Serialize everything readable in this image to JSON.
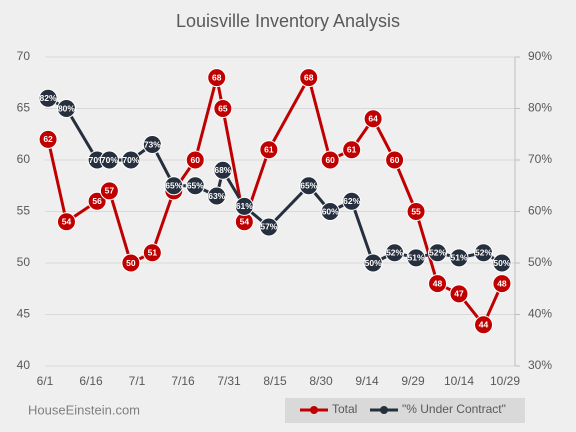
{
  "chart_data": {
    "type": "line",
    "title": "Louisville Inventory Analysis",
    "source": "HouseEinstein.com",
    "x": [
      "6/2",
      "6/8",
      "6/18",
      "6/22",
      "6/29",
      "7/6",
      "7/13",
      "7/20",
      "7/27",
      "7/29",
      "8/5",
      "8/13",
      "8/26",
      "9/2",
      "9/9",
      "9/16",
      "9/23",
      "9/30",
      "10/7",
      "10/14",
      "10/22",
      "10/28"
    ],
    "xlim": [
      "6/1",
      "10/29"
    ],
    "xticks": [
      "6/1",
      "6/16",
      "7/1",
      "7/16",
      "7/31",
      "8/15",
      "8/30",
      "9/14",
      "9/29",
      "10/14",
      "10/29"
    ],
    "ylim": [
      40,
      70
    ],
    "yticks": [
      40,
      45,
      50,
      55,
      60,
      65,
      70
    ],
    "y2lim": [
      30,
      90
    ],
    "y2ticks": [
      {
        "value": 30,
        "label": "30%"
      },
      {
        "value": 40,
        "label": "40%"
      },
      {
        "value": 50,
        "label": "50%"
      },
      {
        "value": 60,
        "label": "60%"
      },
      {
        "value": 70,
        "label": "70%"
      },
      {
        "value": 80,
        "label": "80%"
      },
      {
        "value": 90,
        "label": "90%"
      }
    ],
    "grid": true,
    "legend": "bottom",
    "series": [
      {
        "name": "Total",
        "color": "#c00000",
        "values": [
          62,
          54,
          56,
          57,
          50,
          51,
          57,
          60,
          68,
          65,
          54,
          61,
          68,
          60,
          61,
          64,
          60,
          55,
          48,
          47,
          44,
          48
        ]
      },
      {
        "name": "\"% Under Contract\"",
        "color": "#262f3d",
        "axis": "y2",
        "values": [
          82,
          80,
          70,
          70,
          70,
          73,
          65,
          65,
          63,
          68,
          61,
          57,
          65,
          60,
          62,
          50,
          52,
          51,
          52,
          51,
          52,
          50
        ],
        "value_labels": [
          "82%",
          "80%",
          "70%",
          "70%",
          "70%",
          "73%",
          "65%",
          "65%",
          "63%",
          "68%",
          "61%",
          "57%",
          "65%",
          "60%",
          "62%",
          "50%",
          "52%",
          "51%",
          "52%",
          "51%",
          "52%",
          "50%"
        ]
      }
    ]
  }
}
